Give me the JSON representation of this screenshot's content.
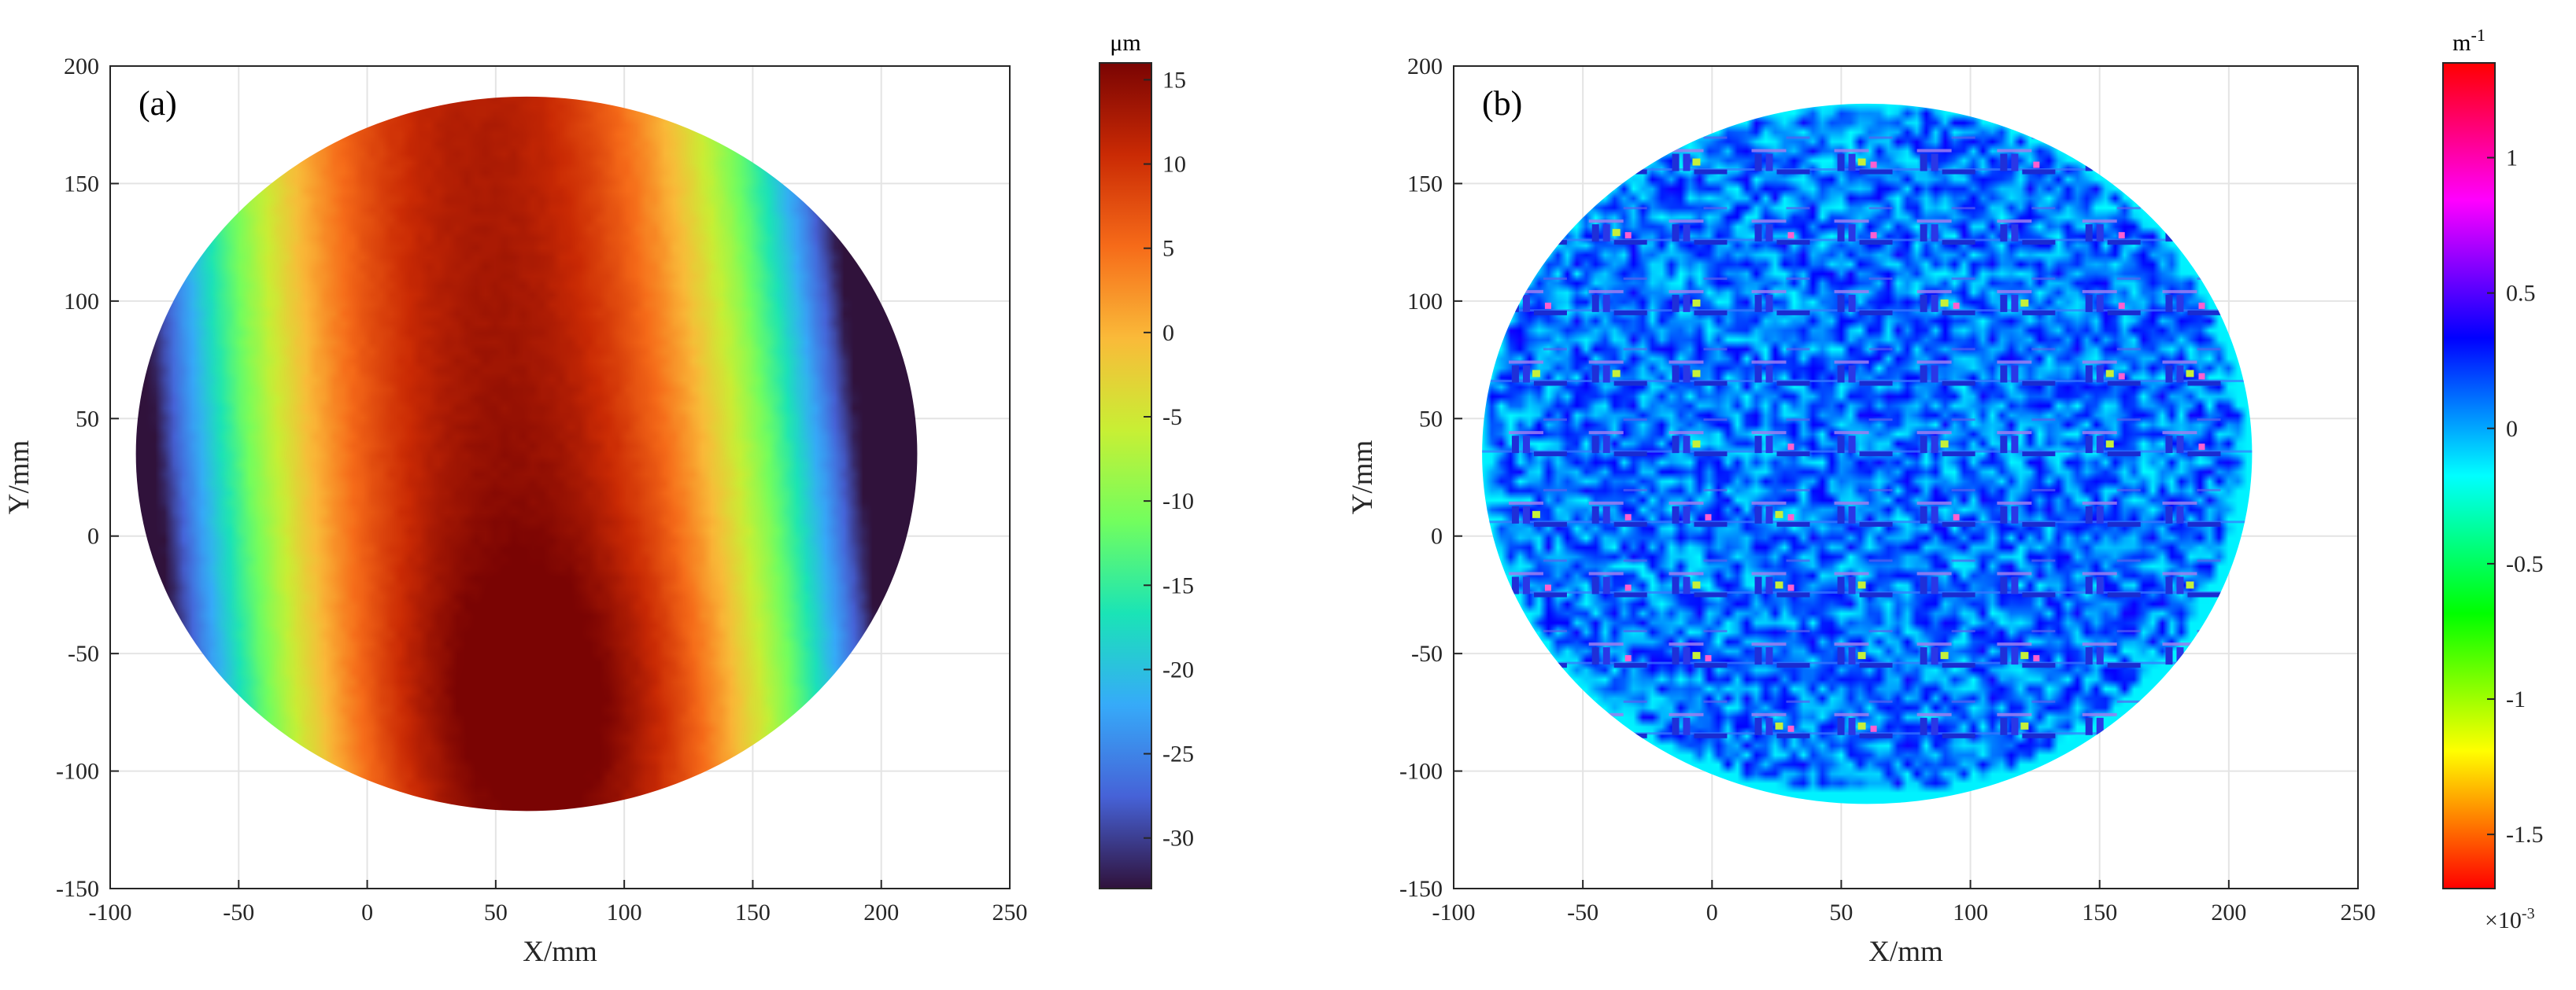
{
  "chart_data": [
    {
      "type": "heatmap",
      "panel_label": "(a)",
      "xlabel": "X/mm",
      "ylabel": "Y/mm",
      "xlim": [
        -100,
        250
      ],
      "ylim": [
        -150,
        200
      ],
      "xticks": [
        -100,
        -50,
        0,
        50,
        100,
        150,
        200,
        250
      ],
      "yticks": [
        -150,
        -100,
        -50,
        0,
        50,
        100,
        150,
        200
      ],
      "grid": true,
      "domain": {
        "shape": "circle",
        "center": [
          62,
          35
        ],
        "radius": 152
      },
      "field": {
        "description_type": "surface height",
        "peak": {
          "x": 68,
          "y": -70,
          "value": 15
        },
        "edge_minimum": {
          "x_left": -90,
          "x_right": 213,
          "value": -33
        },
        "ridge_x_at_top": 45,
        "ridge_x_at_bottom": 68
      },
      "colorbar": {
        "title": "μm",
        "range": [
          -33,
          16
        ],
        "ticks": [
          15,
          10,
          5,
          0,
          -5,
          -10,
          -15,
          -20,
          -25,
          -30
        ],
        "colormap": [
          "#30123b",
          "#4662d7",
          "#36aaf9",
          "#1ae4b6",
          "#72fe5e",
          "#c8ef34",
          "#faba39",
          "#f66b19",
          "#ca2a04",
          "#7a0403"
        ]
      }
    },
    {
      "type": "heatmap",
      "panel_label": "(b)",
      "xlabel": "X/mm",
      "ylabel": "Y/mm",
      "xlim": [
        -100,
        250
      ],
      "ylim": [
        -150,
        200
      ],
      "xticks": [
        -100,
        -50,
        0,
        50,
        100,
        150,
        200,
        250
      ],
      "yticks": [
        -150,
        -100,
        -50,
        0,
        50,
        100,
        150,
        200
      ],
      "grid": true,
      "domain": {
        "shape": "circle",
        "center": [
          60,
          35
        ],
        "radius": 149
      },
      "field": {
        "description_type": "curvature",
        "background_value": 0.1,
        "pattern_columns_x": [
          -72,
          -41,
          -10,
          22,
          54,
          86,
          117,
          150,
          181
        ],
        "pattern_rows_y": [
          -80,
          -50,
          -20,
          10,
          40,
          70,
          100,
          130,
          160
        ]
      },
      "colorbar": {
        "title": "m",
        "title_exponent": "-1",
        "multiplier": "×10",
        "multiplier_exponent": "-3",
        "range": [
          -1.7,
          1.35
        ],
        "ticks": [
          1,
          0.5,
          0,
          -0.5,
          -1,
          -1.5
        ],
        "colormap": [
          "#ff0000",
          "#ffff00",
          "#00ff00",
          "#00ffff",
          "#0000ff",
          "#ff00ff",
          "#ff0000"
        ]
      }
    }
  ]
}
